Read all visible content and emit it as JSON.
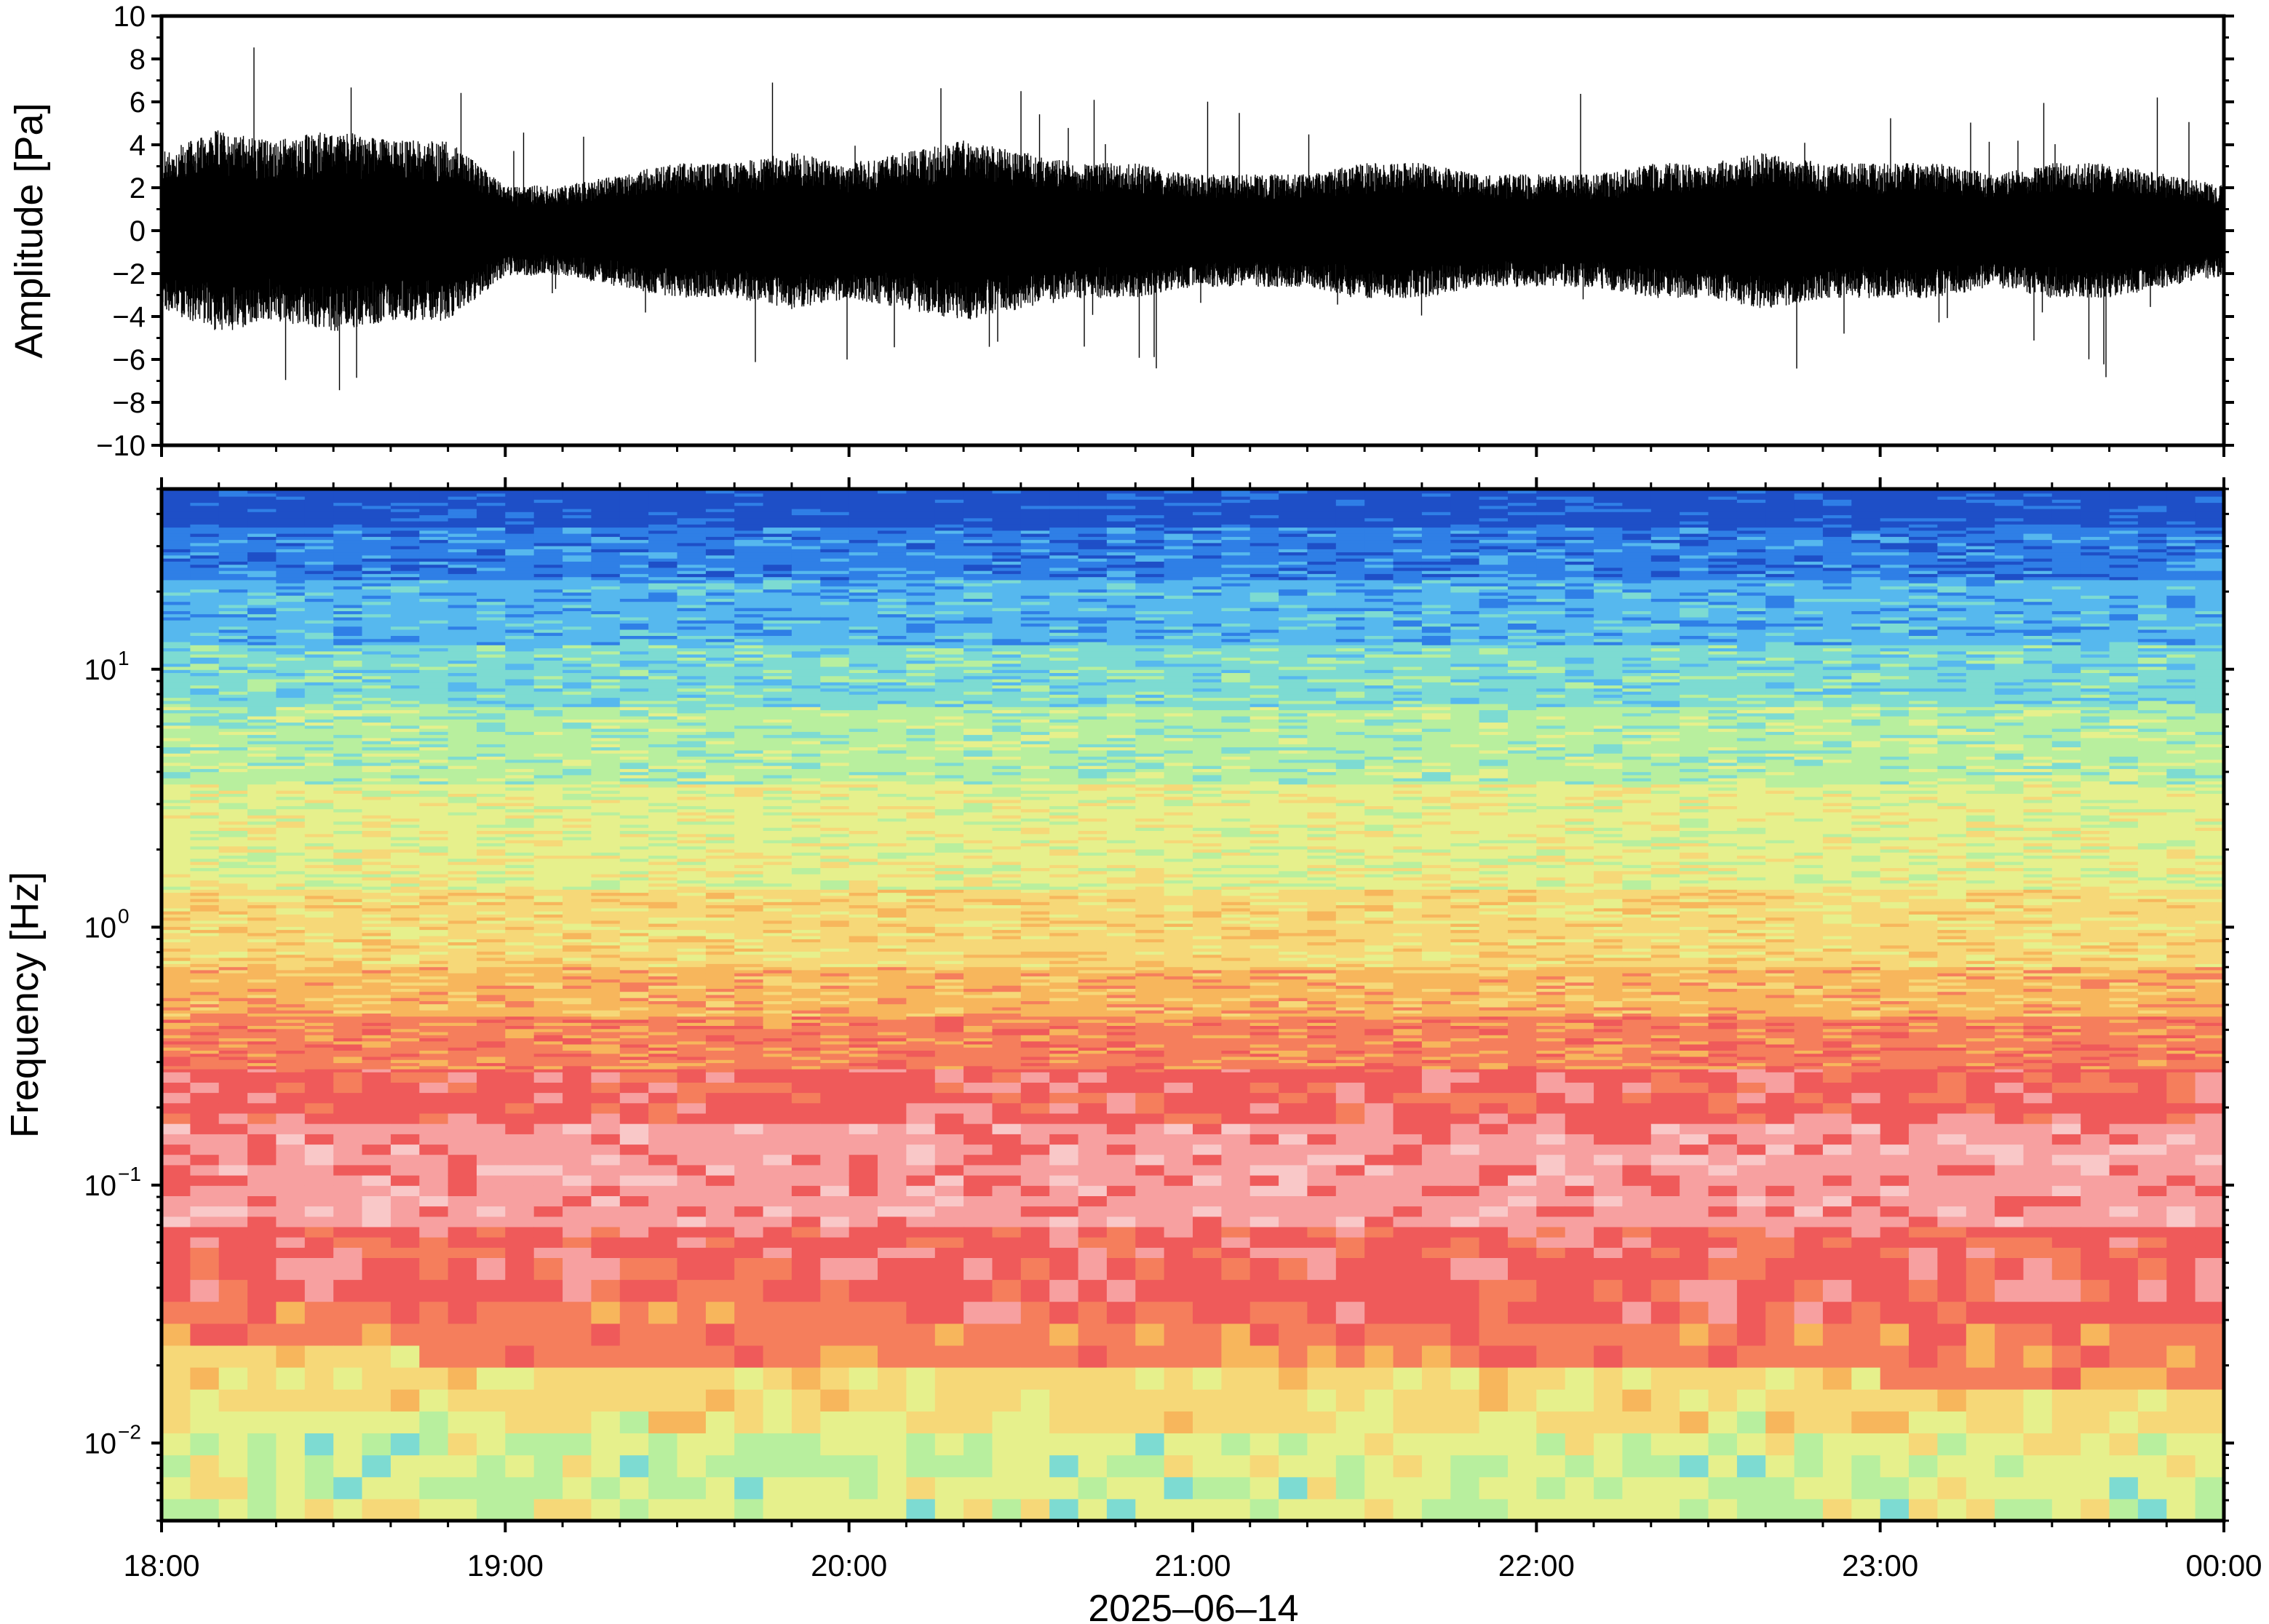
{
  "waveform": {
    "ylabel": "Amplitude [Pa]",
    "ylim": [
      -10,
      10
    ],
    "yticks": [
      {
        "value": 10,
        "label": "10"
      },
      {
        "value": 8,
        "label": "8"
      },
      {
        "value": 6,
        "label": "6"
      },
      {
        "value": 4,
        "label": "4"
      },
      {
        "value": 2,
        "label": "2"
      },
      {
        "value": 0,
        "label": "0"
      },
      {
        "value": -2,
        "label": "−2"
      },
      {
        "value": -4,
        "label": "−4"
      },
      {
        "value": -6,
        "label": "−6"
      },
      {
        "value": -8,
        "label": "−8"
      },
      {
        "value": -10,
        "label": "−10"
      }
    ]
  },
  "spectrogram": {
    "ylabel": "Frequency [Hz]",
    "yscale": "log",
    "ylim_hz": [
      0.005,
      50
    ],
    "yticks": [
      {
        "value": 10,
        "base": "10",
        "exp": "1"
      },
      {
        "value": 1,
        "base": "10",
        "exp": "0"
      },
      {
        "value": 0.1,
        "base": "10",
        "exp": "−1"
      },
      {
        "value": 0.01,
        "base": "10",
        "exp": "−2"
      }
    ],
    "colormap": [
      "#1e4fc7",
      "#2f7fe6",
      "#56b8ee",
      "#7ddbd2",
      "#b8ef9e",
      "#e6f08c",
      "#f6d878",
      "#f7b65c",
      "#f57e5c",
      "#ef5a5a",
      "#f7a0a0",
      "#f9c8c8"
    ]
  },
  "xaxis": {
    "title": "2025–06–14",
    "range_hours": [
      18,
      24
    ],
    "ticks": [
      {
        "hour": 18,
        "label": "18:00"
      },
      {
        "hour": 19,
        "label": "19:00"
      },
      {
        "hour": 20,
        "label": "20:00"
      },
      {
        "hour": 21,
        "label": "21:00"
      },
      {
        "hour": 22,
        "label": "22:00"
      },
      {
        "hour": 23,
        "label": "23:00"
      },
      {
        "hour": 24,
        "label": "00:00"
      }
    ]
  },
  "chart_data": [
    {
      "type": "line",
      "title": "",
      "xlabel": "2025–06–14",
      "ylabel": "Amplitude [Pa]",
      "xlim": [
        "18:00",
        "00:00"
      ],
      "ylim": [
        -10,
        10
      ],
      "series": [
        {
          "x": [
            "18:00",
            "18:10",
            "18:20",
            "18:30",
            "18:40",
            "18:50",
            "19:00",
            "19:10",
            "19:20",
            "19:30",
            "19:40",
            "19:50",
            "20:00",
            "20:10",
            "20:20",
            "20:30",
            "20:40",
            "20:50",
            "21:00",
            "21:10",
            "21:20",
            "21:30",
            "21:40",
            "21:50",
            "22:00",
            "22:10",
            "22:20",
            "22:30",
            "22:40",
            "22:50",
            "23:00",
            "23:10",
            "23:20",
            "23:30",
            "23:40",
            "23:50",
            "00:00"
          ],
          "amplitude_max": [
            3.5,
            4.5,
            4.0,
            4.5,
            4.0,
            4.0,
            2.0,
            2.0,
            2.5,
            3.0,
            3.0,
            3.5,
            3.0,
            3.5,
            4.0,
            3.5,
            3.0,
            3.0,
            2.5,
            2.5,
            2.5,
            3.0,
            3.0,
            2.5,
            2.5,
            2.5,
            3.0,
            3.0,
            3.5,
            3.0,
            3.0,
            3.0,
            2.5,
            3.0,
            3.0,
            2.5,
            2.0
          ],
          "amplitude_min": [
            -3.5,
            -4.5,
            -4.0,
            -4.5,
            -4.0,
            -4.0,
            -2.0,
            -2.0,
            -2.5,
            -3.0,
            -3.0,
            -3.5,
            -3.0,
            -3.5,
            -4.0,
            -3.5,
            -3.0,
            -3.0,
            -2.5,
            -2.5,
            -2.5,
            -3.0,
            -3.0,
            -2.5,
            -2.5,
            -2.5,
            -3.0,
            -3.0,
            -3.5,
            -3.0,
            -3.0,
            -3.0,
            -2.5,
            -3.0,
            -3.0,
            -2.5,
            -2.0
          ]
        }
      ]
    },
    {
      "type": "heatmap",
      "title": "",
      "xlabel": "2025–06–14",
      "ylabel": "Frequency [Hz]",
      "xlim": [
        "18:00",
        "00:00"
      ],
      "ylim": [
        0.005,
        50
      ],
      "yscale": "log"
    }
  ]
}
